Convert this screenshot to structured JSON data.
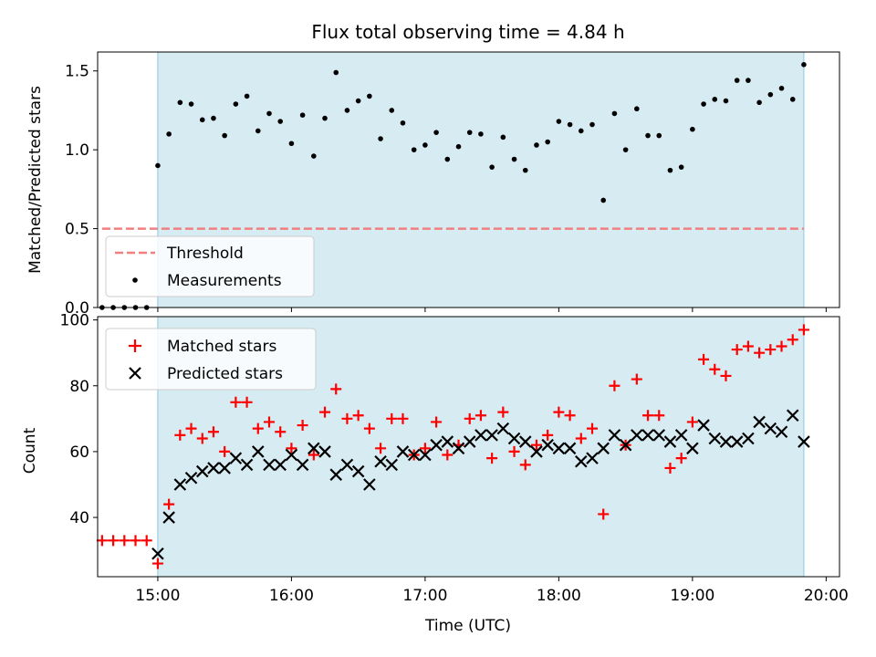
{
  "chart_data": [
    {
      "type": "scatter",
      "title": "Flux total observing time = 4.84 h",
      "xlabel": "",
      "ylabel": "Matched/Predicted stars",
      "xlim": [
        "14:33",
        "20:06"
      ],
      "ylim": [
        0,
        1.62
      ],
      "yticks": [
        0.0,
        0.5,
        1.0,
        1.5
      ],
      "ytick_labels": [
        "0.0",
        "0.5",
        "1.0",
        "1.5"
      ],
      "grid": false,
      "legend": "lower-left",
      "observing_window": [
        "15:00",
        "19:50"
      ],
      "series": [
        {
          "name": "Threshold",
          "style": "dashed-line",
          "color": "#f08080",
          "x": [
            "14:35",
            "19:50"
          ],
          "y": [
            0.5,
            0.5
          ]
        },
        {
          "name": "Measurements",
          "style": "dot",
          "color": "#000000",
          "x": [
            "14:35",
            "14:40",
            "14:45",
            "14:50",
            "14:55",
            "15:00",
            "15:05",
            "15:10",
            "15:15",
            "15:20",
            "15:25",
            "15:30",
            "15:35",
            "15:40",
            "15:45",
            "15:50",
            "15:55",
            "16:00",
            "16:05",
            "16:10",
            "16:15",
            "16:20",
            "16:25",
            "16:30",
            "16:35",
            "16:40",
            "16:45",
            "16:50",
            "16:55",
            "17:00",
            "17:05",
            "17:10",
            "17:15",
            "17:20",
            "17:25",
            "17:30",
            "17:35",
            "17:40",
            "17:45",
            "17:50",
            "17:55",
            "18:00",
            "18:05",
            "18:10",
            "18:15",
            "18:20",
            "18:25",
            "18:30",
            "18:35",
            "18:40",
            "18:45",
            "18:50",
            "18:55",
            "19:00",
            "19:05",
            "19:10",
            "19:15",
            "19:20",
            "19:25",
            "19:30",
            "19:35",
            "19:40",
            "19:45",
            "19:50"
          ],
          "y": [
            0.0,
            0.0,
            0.0,
            0.0,
            0.0,
            0.9,
            1.1,
            1.3,
            1.29,
            1.19,
            1.2,
            1.09,
            1.29,
            1.34,
            1.12,
            1.23,
            1.18,
            1.04,
            1.22,
            0.96,
            1.2,
            1.49,
            1.25,
            1.31,
            1.34,
            1.07,
            1.25,
            1.17,
            1.0,
            1.03,
            1.11,
            0.94,
            1.02,
            1.11,
            1.1,
            0.89,
            1.08,
            0.94,
            0.87,
            1.03,
            1.05,
            1.18,
            1.16,
            1.12,
            1.16,
            0.68,
            1.23,
            1.0,
            1.26,
            1.09,
            1.09,
            0.87,
            0.89,
            1.13,
            1.29,
            1.32,
            1.31,
            1.44,
            1.44,
            1.3,
            1.35,
            1.39,
            1.32,
            1.54
          ]
        }
      ]
    },
    {
      "type": "scatter",
      "title": "",
      "xlabel": "Time (UTC)",
      "ylabel": "Count",
      "xlim": [
        "14:33",
        "20:06"
      ],
      "ylim": [
        22,
        101
      ],
      "yticks": [
        40,
        60,
        80,
        100
      ],
      "ytick_labels": [
        "40",
        "60",
        "80",
        "100"
      ],
      "xticks": [
        "15:00",
        "16:00",
        "17:00",
        "18:00",
        "19:00",
        "20:00"
      ],
      "grid": false,
      "legend": "top-left",
      "observing_window": [
        "15:00",
        "19:50"
      ],
      "series": [
        {
          "name": "Matched stars",
          "marker": "plus",
          "color": "#ff0000",
          "x": [
            "14:35",
            "14:40",
            "14:45",
            "14:50",
            "14:55",
            "15:00",
            "15:05",
            "15:10",
            "15:15",
            "15:20",
            "15:25",
            "15:30",
            "15:35",
            "15:40",
            "15:45",
            "15:50",
            "15:55",
            "16:00",
            "16:05",
            "16:10",
            "16:15",
            "16:20",
            "16:25",
            "16:30",
            "16:35",
            "16:40",
            "16:45",
            "16:50",
            "16:55",
            "17:00",
            "17:05",
            "17:10",
            "17:15",
            "17:20",
            "17:25",
            "17:30",
            "17:35",
            "17:40",
            "17:45",
            "17:50",
            "17:55",
            "18:00",
            "18:05",
            "18:10",
            "18:15",
            "18:20",
            "18:25",
            "18:30",
            "18:35",
            "18:40",
            "18:45",
            "18:50",
            "18:55",
            "19:00",
            "19:05",
            "19:10",
            "19:15",
            "19:20",
            "19:25",
            "19:30",
            "19:35",
            "19:40",
            "19:45",
            "19:50"
          ],
          "y": [
            33,
            33,
            33,
            33,
            33,
            26,
            44,
            65,
            67,
            64,
            66,
            60,
            75,
            75,
            67,
            69,
            66,
            61,
            68,
            59,
            72,
            79,
            70,
            71,
            67,
            61,
            70,
            70,
            59,
            61,
            69,
            59,
            62,
            70,
            71,
            58,
            72,
            60,
            56,
            62,
            65,
            72,
            71,
            64,
            67,
            41,
            80,
            62,
            82,
            71,
            71,
            55,
            58,
            69,
            88,
            85,
            83,
            91,
            92,
            90,
            91,
            92,
            94,
            97
          ]
        },
        {
          "name": "Predicted stars",
          "marker": "x",
          "color": "#000000",
          "x": [
            "15:00",
            "15:05",
            "15:10",
            "15:15",
            "15:20",
            "15:25",
            "15:30",
            "15:35",
            "15:40",
            "15:45",
            "15:50",
            "15:55",
            "16:00",
            "16:05",
            "16:10",
            "16:15",
            "16:20",
            "16:25",
            "16:30",
            "16:35",
            "16:40",
            "16:45",
            "16:50",
            "16:55",
            "17:00",
            "17:05",
            "17:10",
            "17:15",
            "17:20",
            "17:25",
            "17:30",
            "17:35",
            "17:40",
            "17:45",
            "17:50",
            "17:55",
            "18:00",
            "18:05",
            "18:10",
            "18:15",
            "18:20",
            "18:25",
            "18:30",
            "18:35",
            "18:40",
            "18:45",
            "18:50",
            "18:55",
            "19:00",
            "19:05",
            "19:10",
            "19:15",
            "19:20",
            "19:25",
            "19:30",
            "19:35",
            "19:40",
            "19:45",
            "19:50"
          ],
          "y": [
            29,
            40,
            50,
            52,
            54,
            55,
            55,
            58,
            56,
            60,
            56,
            56,
            59,
            56,
            61,
            60,
            53,
            56,
            54,
            50,
            57,
            56,
            60,
            59,
            59,
            62,
            63,
            61,
            63,
            65,
            65,
            67,
            64,
            63,
            60,
            62,
            61,
            61,
            57,
            58,
            61,
            65,
            62,
            65,
            65,
            65,
            63,
            65,
            61,
            68,
            64,
            63,
            63,
            64,
            69,
            67,
            66,
            71,
            63
          ]
        }
      ]
    }
  ]
}
